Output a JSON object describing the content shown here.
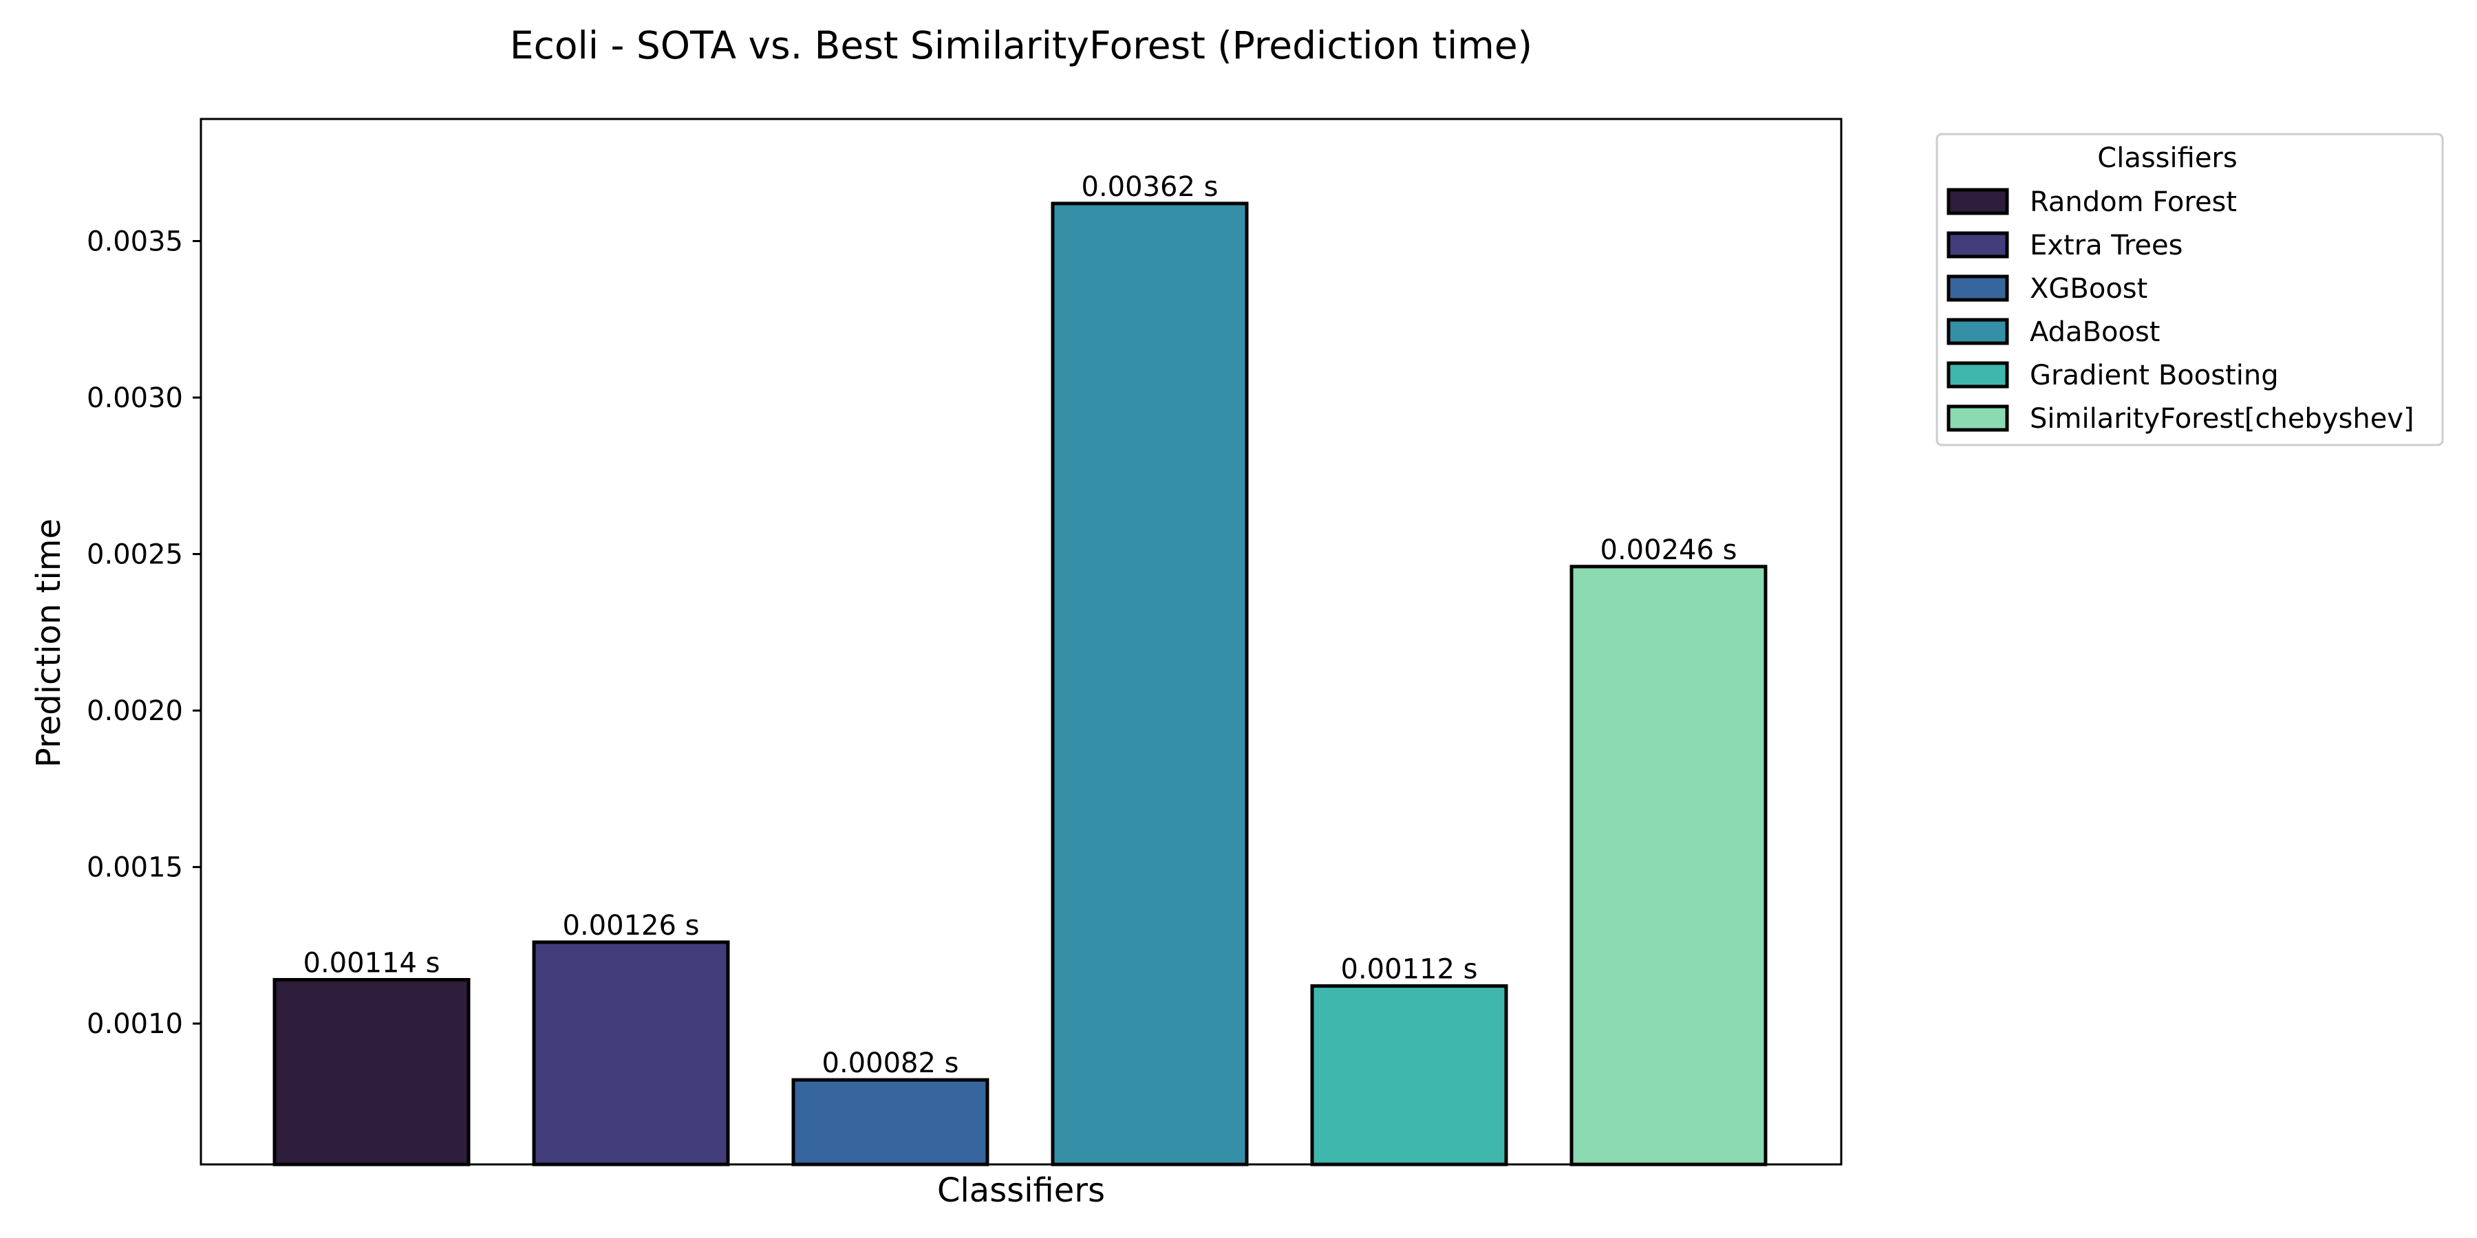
{
  "chart_data": {
    "type": "bar",
    "title": "Ecoli - SOTA vs. Best SimilarityForest (Prediction time)",
    "xlabel": "Classifiers",
    "ylabel": "Prediction time",
    "ylim": [
      0.00055,
      0.00389
    ],
    "yticks": [
      0.001,
      0.0015,
      0.002,
      0.0025,
      0.003,
      0.0035
    ],
    "ytick_labels": [
      "0.0010",
      "0.0015",
      "0.0020",
      "0.0025",
      "0.0030",
      "0.0035"
    ],
    "categories": [
      "Random Forest",
      "Extra Trees",
      "XGBoost",
      "AdaBoost",
      "Gradient Boosting",
      "SimilarityForest[chebyshev]"
    ],
    "values": [
      0.00114,
      0.00126,
      0.00082,
      0.00362,
      0.00112,
      0.00246
    ],
    "data_labels": [
      "0.00114 s",
      "0.00126 s",
      "0.00082 s",
      "0.00362 s",
      "0.00112 s",
      "0.00246 s"
    ],
    "colors": [
      "#2e1e3b",
      "#413d7b",
      "#37659e",
      "#348fa7",
      "#40b7ad",
      "#8bdab2"
    ],
    "legend": {
      "title": "Classifiers",
      "placement": "outside upper right",
      "entries": [
        "Random Forest",
        "Extra Trees",
        "XGBoost",
        "AdaBoost",
        "Gradient Boosting",
        "SimilarityForest[chebyshev]"
      ]
    },
    "grid": false,
    "xticks_shown": false
  }
}
